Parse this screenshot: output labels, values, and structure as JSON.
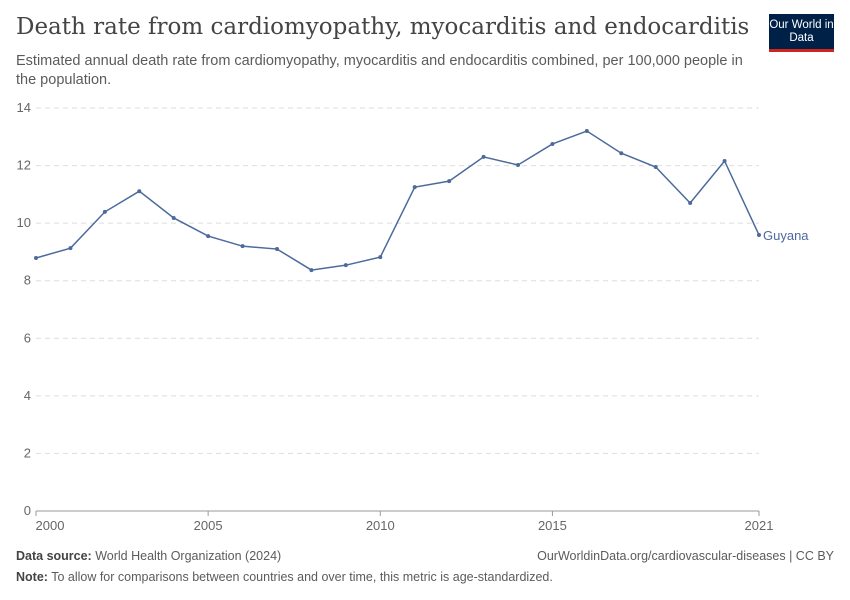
{
  "header": {
    "title": "Death rate from cardiomyopathy, myocarditis and endocarditis",
    "subtitle": "Estimated annual death rate from cardiomyopathy, myocarditis and endocarditis combined, per 100,000 people in the population.",
    "logo": "Our World in Data"
  },
  "chart_data": {
    "type": "line",
    "x": [
      2000,
      2001,
      2002,
      2003,
      2004,
      2005,
      2006,
      2007,
      2008,
      2009,
      2010,
      2011,
      2012,
      2013,
      2014,
      2015,
      2016,
      2017,
      2018,
      2019,
      2020,
      2021
    ],
    "series": [
      {
        "name": "Guyana",
        "color": "#4c6a9c",
        "values": [
          8.79,
          9.13,
          10.39,
          11.11,
          10.18,
          9.55,
          9.2,
          9.1,
          8.37,
          8.54,
          8.82,
          11.25,
          11.46,
          12.3,
          12.02,
          12.75,
          13.2,
          12.43,
          11.95,
          10.7,
          12.16,
          9.59
        ]
      }
    ],
    "ylim": [
      0,
      14
    ],
    "yticks": [
      0,
      2,
      4,
      6,
      8,
      10,
      12,
      14
    ],
    "xticks": [
      2000,
      2005,
      2010,
      2015,
      2021
    ],
    "grid": true
  },
  "footer": {
    "source_label": "Data source:",
    "source": "World Health Organization (2024)",
    "url": "OurWorldinData.org/cardiovascular-diseases | CC BY",
    "note_label": "Note:",
    "note": "To allow for comparisons between countries and over time, this metric is age-standardized."
  }
}
